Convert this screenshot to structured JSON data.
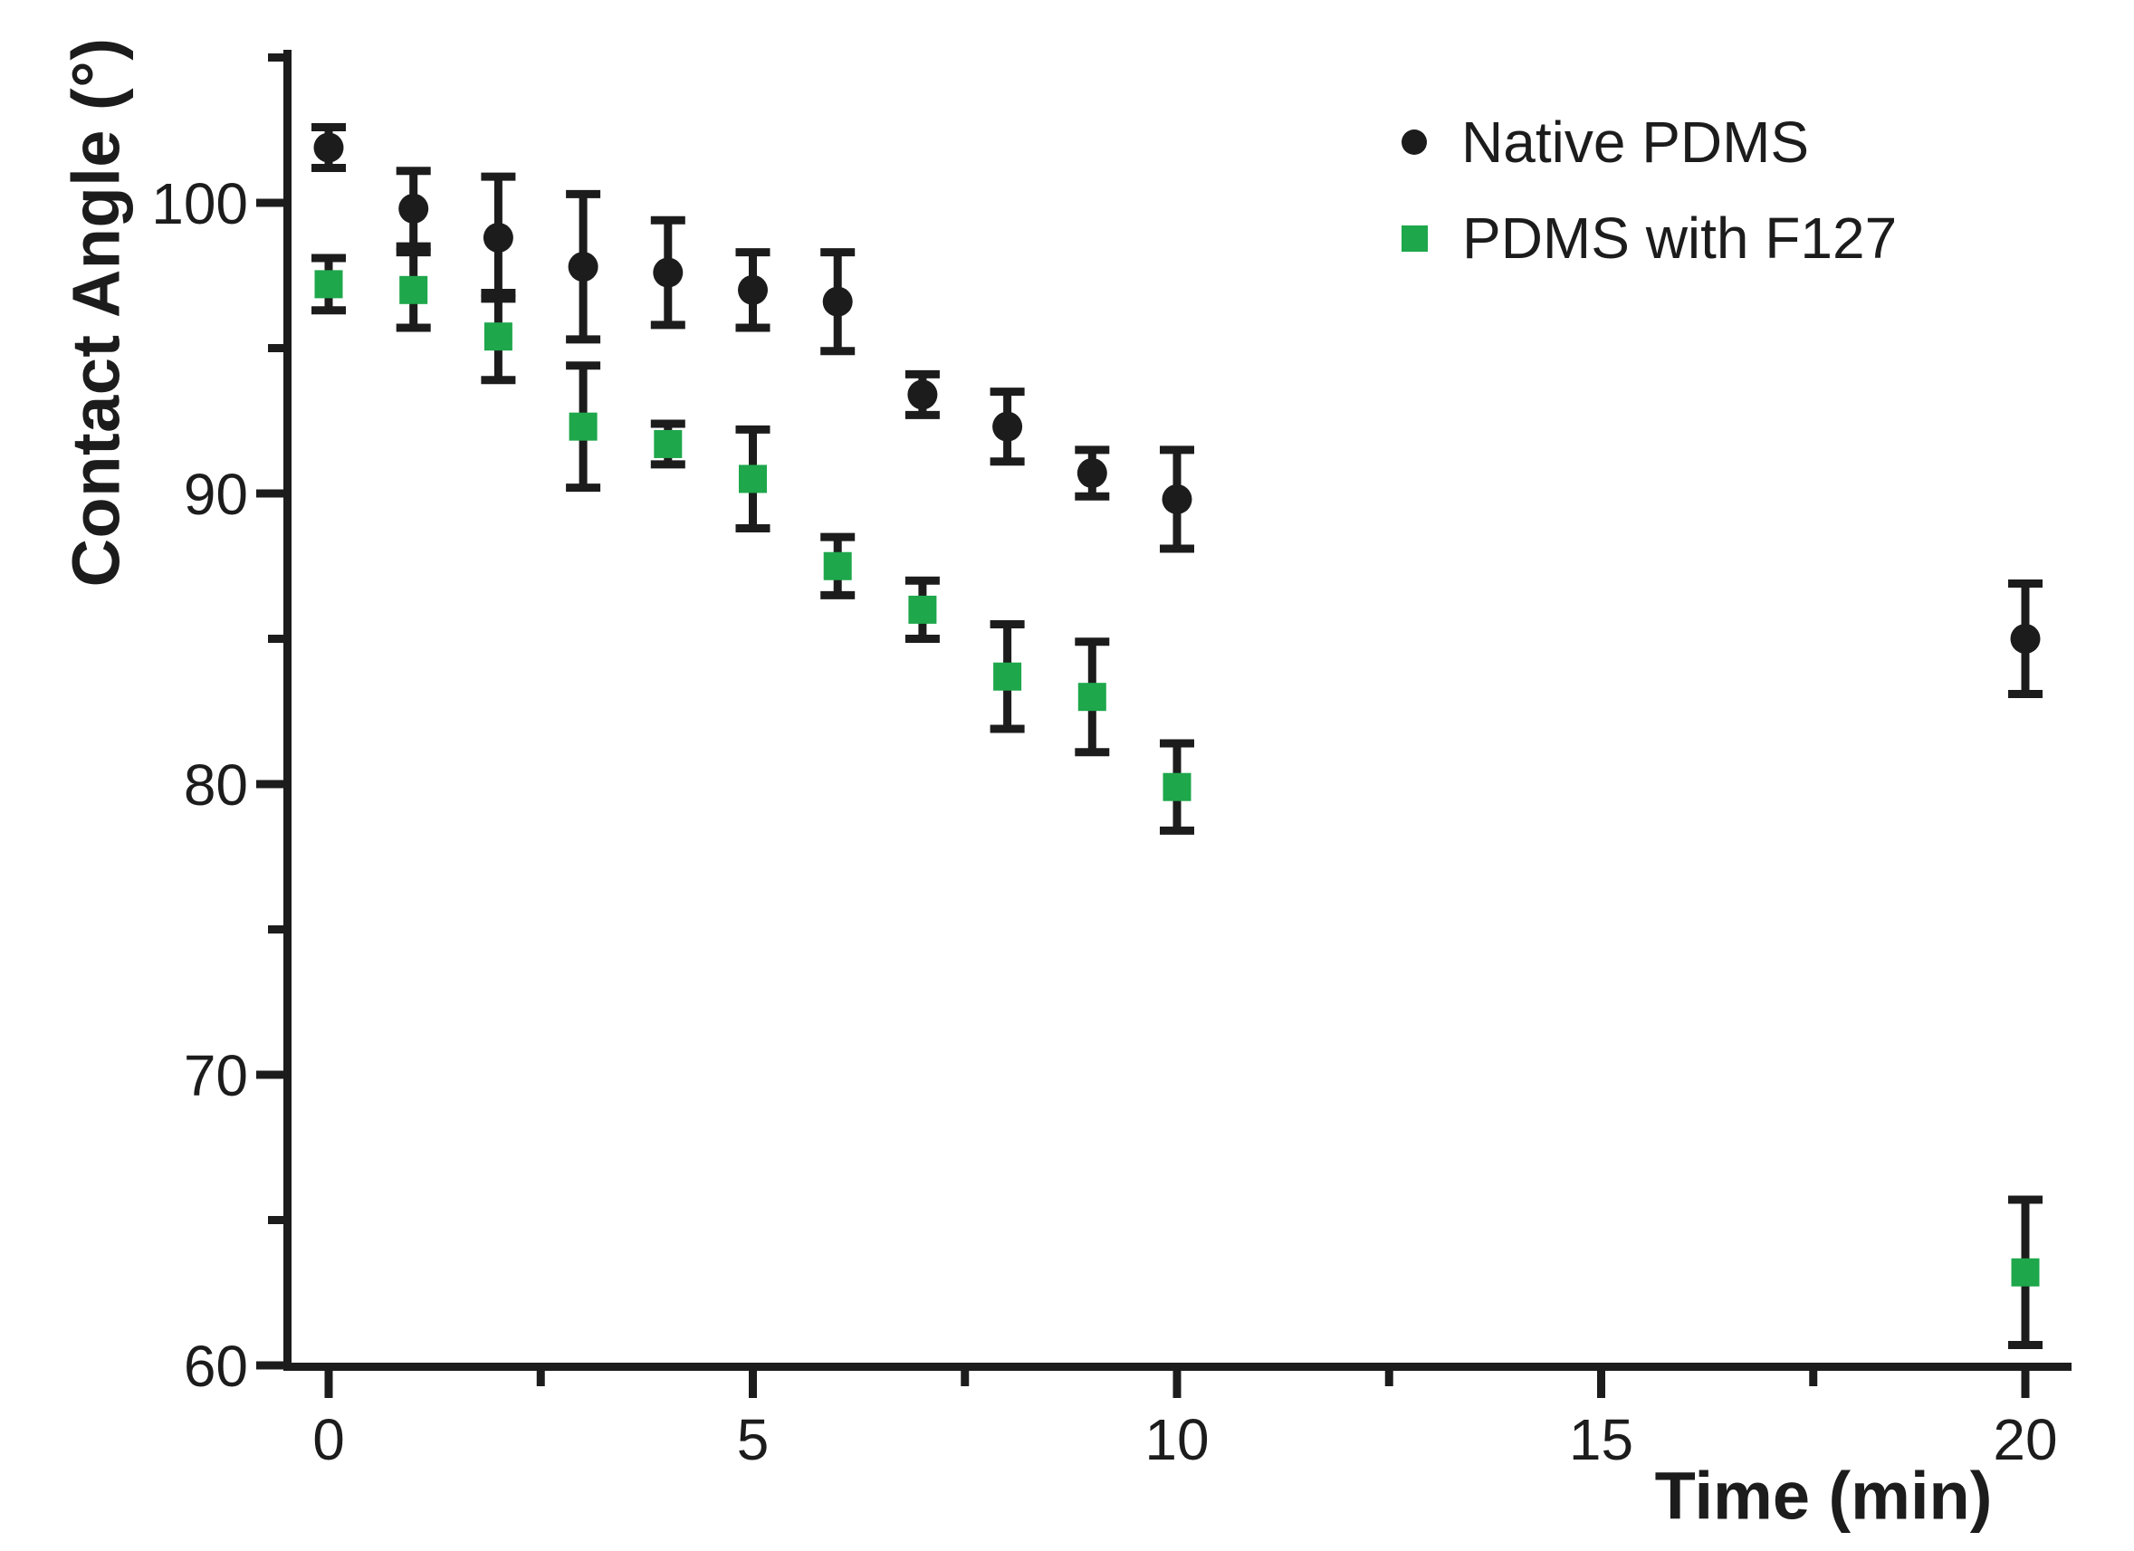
{
  "chart_data": {
    "type": "scatter",
    "title": "",
    "xlabel": "Time (min)",
    "ylabel": "Contact Angle (°)",
    "xlim": [
      -0.55,
      20.55
    ],
    "ylim": [
      60,
      105.3
    ],
    "grid": false,
    "legend_position": "top-right",
    "xticks_major": [
      0,
      5,
      10,
      15,
      20
    ],
    "xticks_minor": [
      2.5,
      7.5,
      12.5,
      17.5
    ],
    "yticks_major": [
      60,
      70,
      80,
      90,
      100
    ],
    "yticks_minor": [
      65,
      75,
      85,
      95,
      105
    ],
    "axis_color": "#1c1c1c",
    "series": [
      {
        "name": "Native PDMS",
        "marker": "circle",
        "color": "#1c1c1c",
        "x": [
          0,
          1,
          2,
          3,
          4,
          5,
          6,
          7,
          8,
          9,
          10,
          20
        ],
        "y": [
          101.9,
          99.8,
          98.8,
          97.8,
          97.6,
          97.0,
          96.6,
          93.4,
          92.3,
          90.7,
          89.8,
          85.0
        ],
        "yerr": [
          0.7,
          1.3,
          2.1,
          2.5,
          1.8,
          1.3,
          1.7,
          0.7,
          1.2,
          0.8,
          1.7,
          1.9
        ]
      },
      {
        "name": "PDMS with F127",
        "marker": "square",
        "color": "#1ea74b",
        "x": [
          0,
          1,
          2,
          3,
          4,
          5,
          6,
          7,
          8,
          9,
          10,
          20
        ],
        "y": [
          97.2,
          97.0,
          95.4,
          92.3,
          91.7,
          90.5,
          87.5,
          86.0,
          83.7,
          83.0,
          79.9,
          63.2
        ],
        "yerr": [
          0.9,
          1.3,
          1.5,
          2.1,
          0.7,
          1.7,
          1.0,
          1.0,
          1.8,
          1.9,
          1.5,
          2.5
        ]
      }
    ]
  }
}
